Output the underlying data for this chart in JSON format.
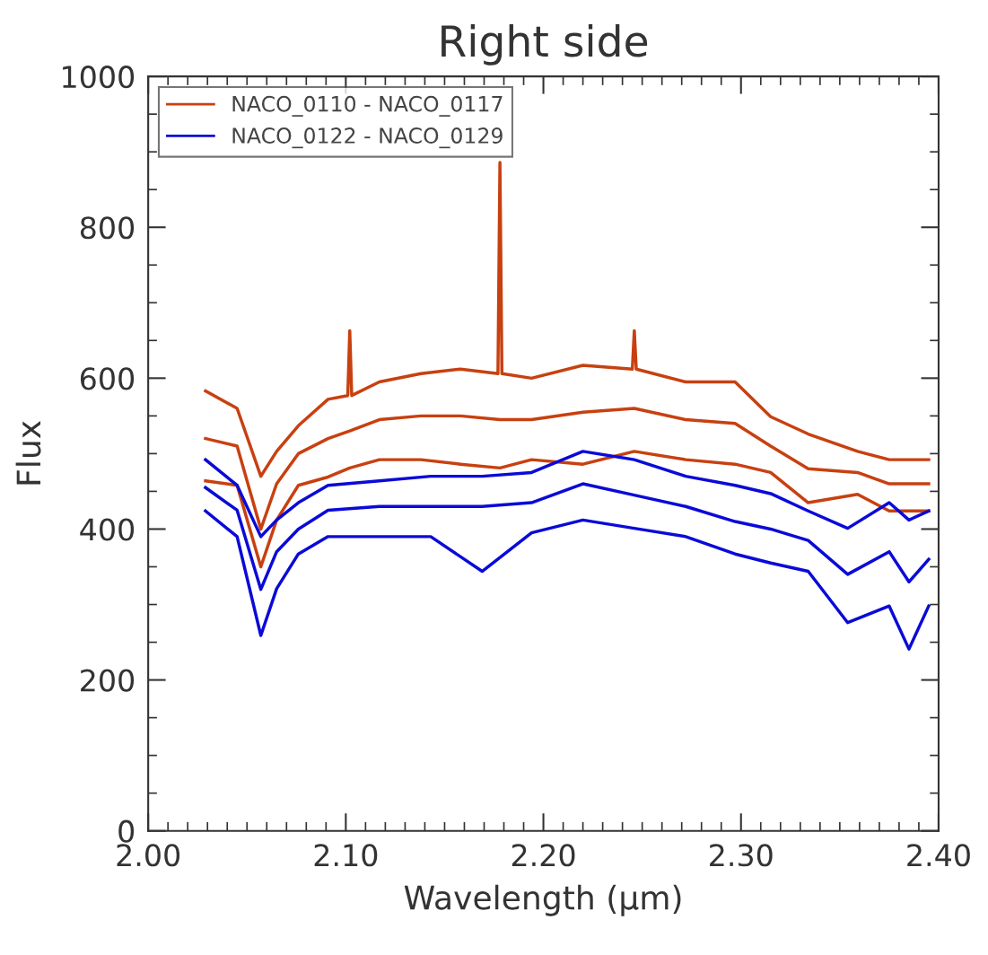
{
  "chart_data": {
    "type": "line",
    "title": "Right side",
    "xlabel": "Wavelength (μm)",
    "ylabel": "Flux",
    "legend": "top left",
    "grid": false,
    "xlim": [
      2.0,
      2.4
    ],
    "xticks": [
      {
        "value": 2.0,
        "label": "2.00"
      },
      {
        "value": 2.1,
        "label": "2.10"
      },
      {
        "value": 2.2,
        "label": "2.20"
      },
      {
        "value": 2.3,
        "label": "2.30"
      },
      {
        "value": 2.4,
        "label": "2.40"
      }
    ],
    "ylim": [
      0,
      1000
    ],
    "yticks": [
      0,
      200,
      400,
      600,
      800,
      1000
    ],
    "series": [
      {
        "color": "#c84010",
        "x": [
          2.029,
          2.045,
          2.057,
          2.065,
          2.076,
          2.091,
          2.101,
          2.102,
          2.103,
          2.117,
          2.138,
          2.158,
          2.177,
          2.178,
          2.179,
          2.194,
          2.22,
          2.245,
          2.246,
          2.247,
          2.272,
          2.297,
          2.315,
          2.334,
          2.359,
          2.375,
          2.395
        ],
        "values": [
          583,
          560,
          470,
          503,
          537,
          572,
          577,
          663,
          577,
          595,
          606,
          612,
          606,
          886,
          606,
          600,
          617,
          612,
          663,
          612,
          595,
          595,
          549,
          526,
          503,
          492,
          492
        ]
      },
      {
        "name": "NACO_0110 - NACO_0117",
        "color": "#c84010",
        "x": [
          2.029,
          2.045,
          2.057,
          2.065,
          2.076,
          2.091,
          2.102,
          2.117,
          2.138,
          2.158,
          2.178,
          2.194,
          2.22,
          2.246,
          2.272,
          2.297,
          2.315,
          2.334,
          2.359,
          2.375,
          2.395
        ],
        "values": [
          520,
          510,
          400,
          460,
          500,
          520,
          530,
          545,
          550,
          550,
          545,
          545,
          555,
          560,
          545,
          540,
          510,
          480,
          475,
          460,
          460
        ]
      },
      {
        "color": "#c84010",
        "x": [
          2.029,
          2.045,
          2.057,
          2.065,
          2.076,
          2.091,
          2.102,
          2.117,
          2.138,
          2.158,
          2.178,
          2.194,
          2.22,
          2.246,
          2.272,
          2.297,
          2.315,
          2.334,
          2.359,
          2.375,
          2.395
        ],
        "values": [
          464,
          458,
          350,
          412,
          458,
          469,
          481,
          492,
          492,
          486,
          481,
          492,
          486,
          503,
          492,
          486,
          475,
          435,
          446,
          424,
          424
        ]
      },
      {
        "color": "#0a0ad8",
        "x": [
          2.029,
          2.045,
          2.057,
          2.065,
          2.076,
          2.091,
          2.117,
          2.143,
          2.169,
          2.194,
          2.22,
          2.246,
          2.272,
          2.297,
          2.315,
          2.334,
          2.354,
          2.375,
          2.385,
          2.395
        ],
        "values": [
          492,
          458,
          390,
          412,
          435,
          458,
          464,
          470,
          470,
          475,
          503,
          492,
          470,
          458,
          447,
          424,
          401,
          435,
          412,
          424
        ]
      },
      {
        "name": "NACO_0122 - NACO_0129",
        "color": "#0a0ad8",
        "x": [
          2.029,
          2.045,
          2.057,
          2.065,
          2.076,
          2.091,
          2.117,
          2.143,
          2.169,
          2.194,
          2.22,
          2.246,
          2.272,
          2.297,
          2.315,
          2.334,
          2.354,
          2.375,
          2.385,
          2.395
        ],
        "values": [
          455,
          425,
          320,
          370,
          400,
          425,
          430,
          430,
          430,
          435,
          460,
          445,
          430,
          410,
          400,
          385,
          340,
          370,
          330,
          360
        ]
      },
      {
        "color": "#0a0ad8",
        "x": [
          2.029,
          2.045,
          2.057,
          2.065,
          2.076,
          2.091,
          2.117,
          2.143,
          2.169,
          2.194,
          2.22,
          2.246,
          2.272,
          2.297,
          2.315,
          2.334,
          2.354,
          2.375,
          2.385,
          2.395
        ],
        "values": [
          424,
          390,
          259,
          321,
          367,
          390,
          390,
          390,
          344,
          395,
          412,
          401,
          390,
          367,
          355,
          344,
          276,
          298,
          241,
          298
        ]
      }
    ]
  }
}
